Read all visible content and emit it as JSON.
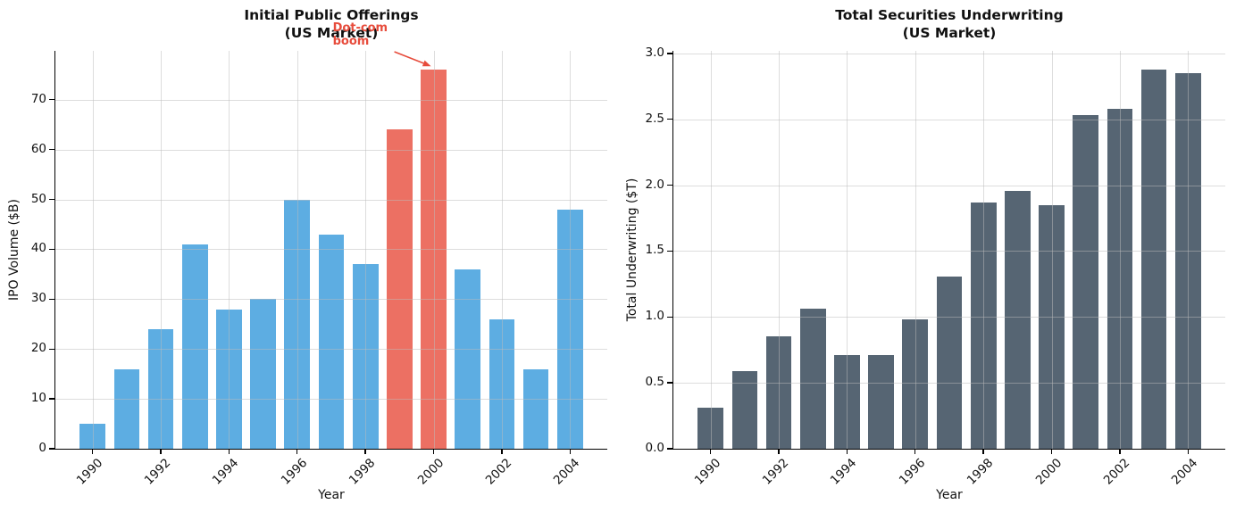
{
  "figure": {
    "background": "#ffffff"
  },
  "chart_data": [
    {
      "type": "bar",
      "title": "Initial Public Offerings",
      "subtitle": "(US Market)",
      "xlabel": "Year",
      "ylabel": "IPO Volume ($B)",
      "x": [
        1990,
        1991,
        1992,
        1993,
        1994,
        1995,
        1996,
        1997,
        1998,
        1999,
        2000,
        2001,
        2002,
        2003,
        2004
      ],
      "values": [
        5,
        16,
        24,
        41,
        28,
        30,
        50,
        43,
        37,
        64,
        76,
        36,
        26,
        16,
        48
      ],
      "bar_color": "#5DADE2",
      "highlight_years": [
        1999,
        2000
      ],
      "highlight_color": "#EC7063",
      "xticks": [
        1990,
        1992,
        1994,
        1996,
        1998,
        2000,
        2002,
        2004
      ],
      "yticks": [
        "0",
        "10",
        "20",
        "30",
        "40",
        "50",
        "60",
        "70"
      ],
      "ylim": [
        0,
        79.8
      ],
      "grid": true,
      "legend": null,
      "annotation": {
        "text": "Dot-com\nboom",
        "color": "#E74C3C",
        "target_year": 2000
      }
    },
    {
      "type": "bar",
      "title": "Total Securities Underwriting",
      "subtitle": "(US Market)",
      "xlabel": "Year",
      "ylabel": "Total Underwriting ($T)",
      "x": [
        1990,
        1991,
        1992,
        1993,
        1994,
        1995,
        1996,
        1997,
        1998,
        1999,
        2000,
        2001,
        2002,
        2003,
        2004
      ],
      "values": [
        0.31,
        0.59,
        0.85,
        1.06,
        0.71,
        0.71,
        0.98,
        1.31,
        1.87,
        1.96,
        1.85,
        2.53,
        2.58,
        2.88,
        2.85
      ],
      "bar_color": "#566573",
      "highlight_years": [],
      "highlight_color": "#566573",
      "xticks": [
        1990,
        1992,
        1994,
        1996,
        1998,
        2000,
        2002,
        2004
      ],
      "yticks": [
        "0.0",
        "0.5",
        "1.0",
        "1.5",
        "2.0",
        "2.5",
        "3.0"
      ],
      "ylim": [
        0,
        3.02
      ],
      "grid": true,
      "legend": null,
      "annotation": null
    }
  ]
}
